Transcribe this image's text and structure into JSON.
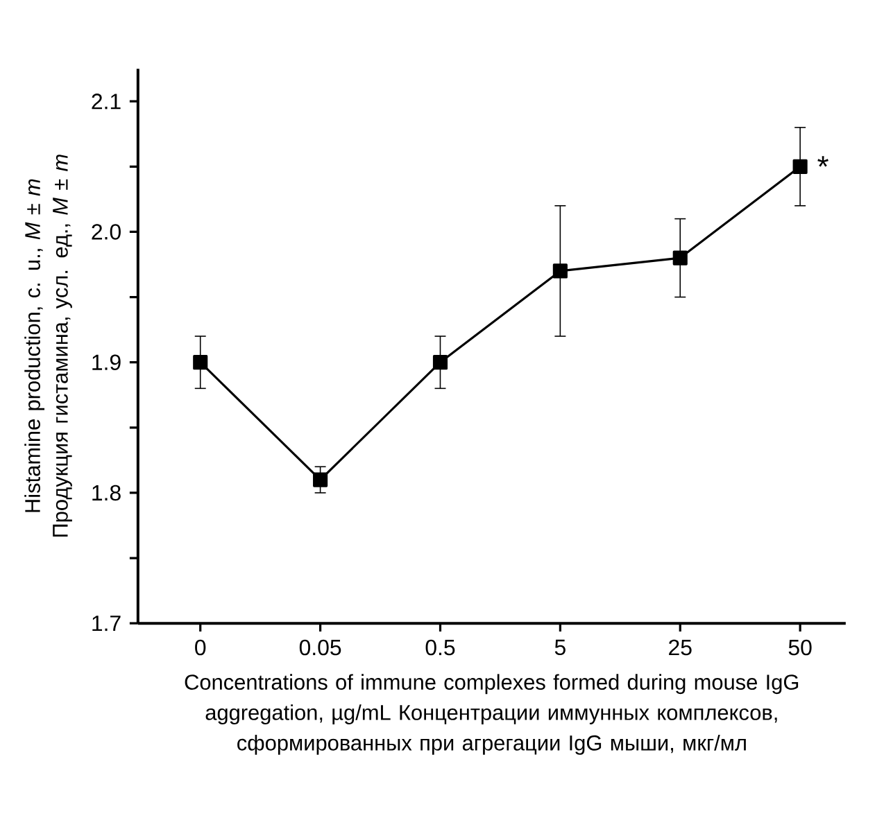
{
  "chart_data": {
    "type": "line",
    "xlabel": "Concentrations of immune complexes formed during mouse IgG aggregation, µg/mL Концентрации иммунных комплексов, сформированных при агрегации IgG мыши, мкг/мл",
    "ylabel": "Histamine production, c. u., *M* ± *m* Продукция гистамина, усл. ед., *M* ± *m*",
    "categories": [
      "0",
      "0.05",
      "0.5",
      "5",
      "25",
      "50"
    ],
    "series": [
      {
        "color": "#000000",
        "values": [
          1.9,
          1.81,
          1.9,
          1.97,
          1.98,
          2.05
        ],
        "errors": [
          0.02,
          0.01,
          0.02,
          0.05,
          0.03,
          0.03
        ]
      }
    ],
    "ylim": [
      1.7,
      2.125
    ],
    "yticks": [
      1.7,
      {
        "value": 1.75,
        "label": null
      },
      1.8,
      {
        "value": 1.85,
        "label": null
      },
      1.9,
      {
        "value": 1.95,
        "label": null
      },
      "2.0",
      {
        "value": 2.05,
        "label": null
      },
      2.1
    ],
    "annotations": [
      {
        "text": "*",
        "x": "50",
        "y": 2.05
      }
    ],
    "marker": "square",
    "line_style": "solid"
  }
}
